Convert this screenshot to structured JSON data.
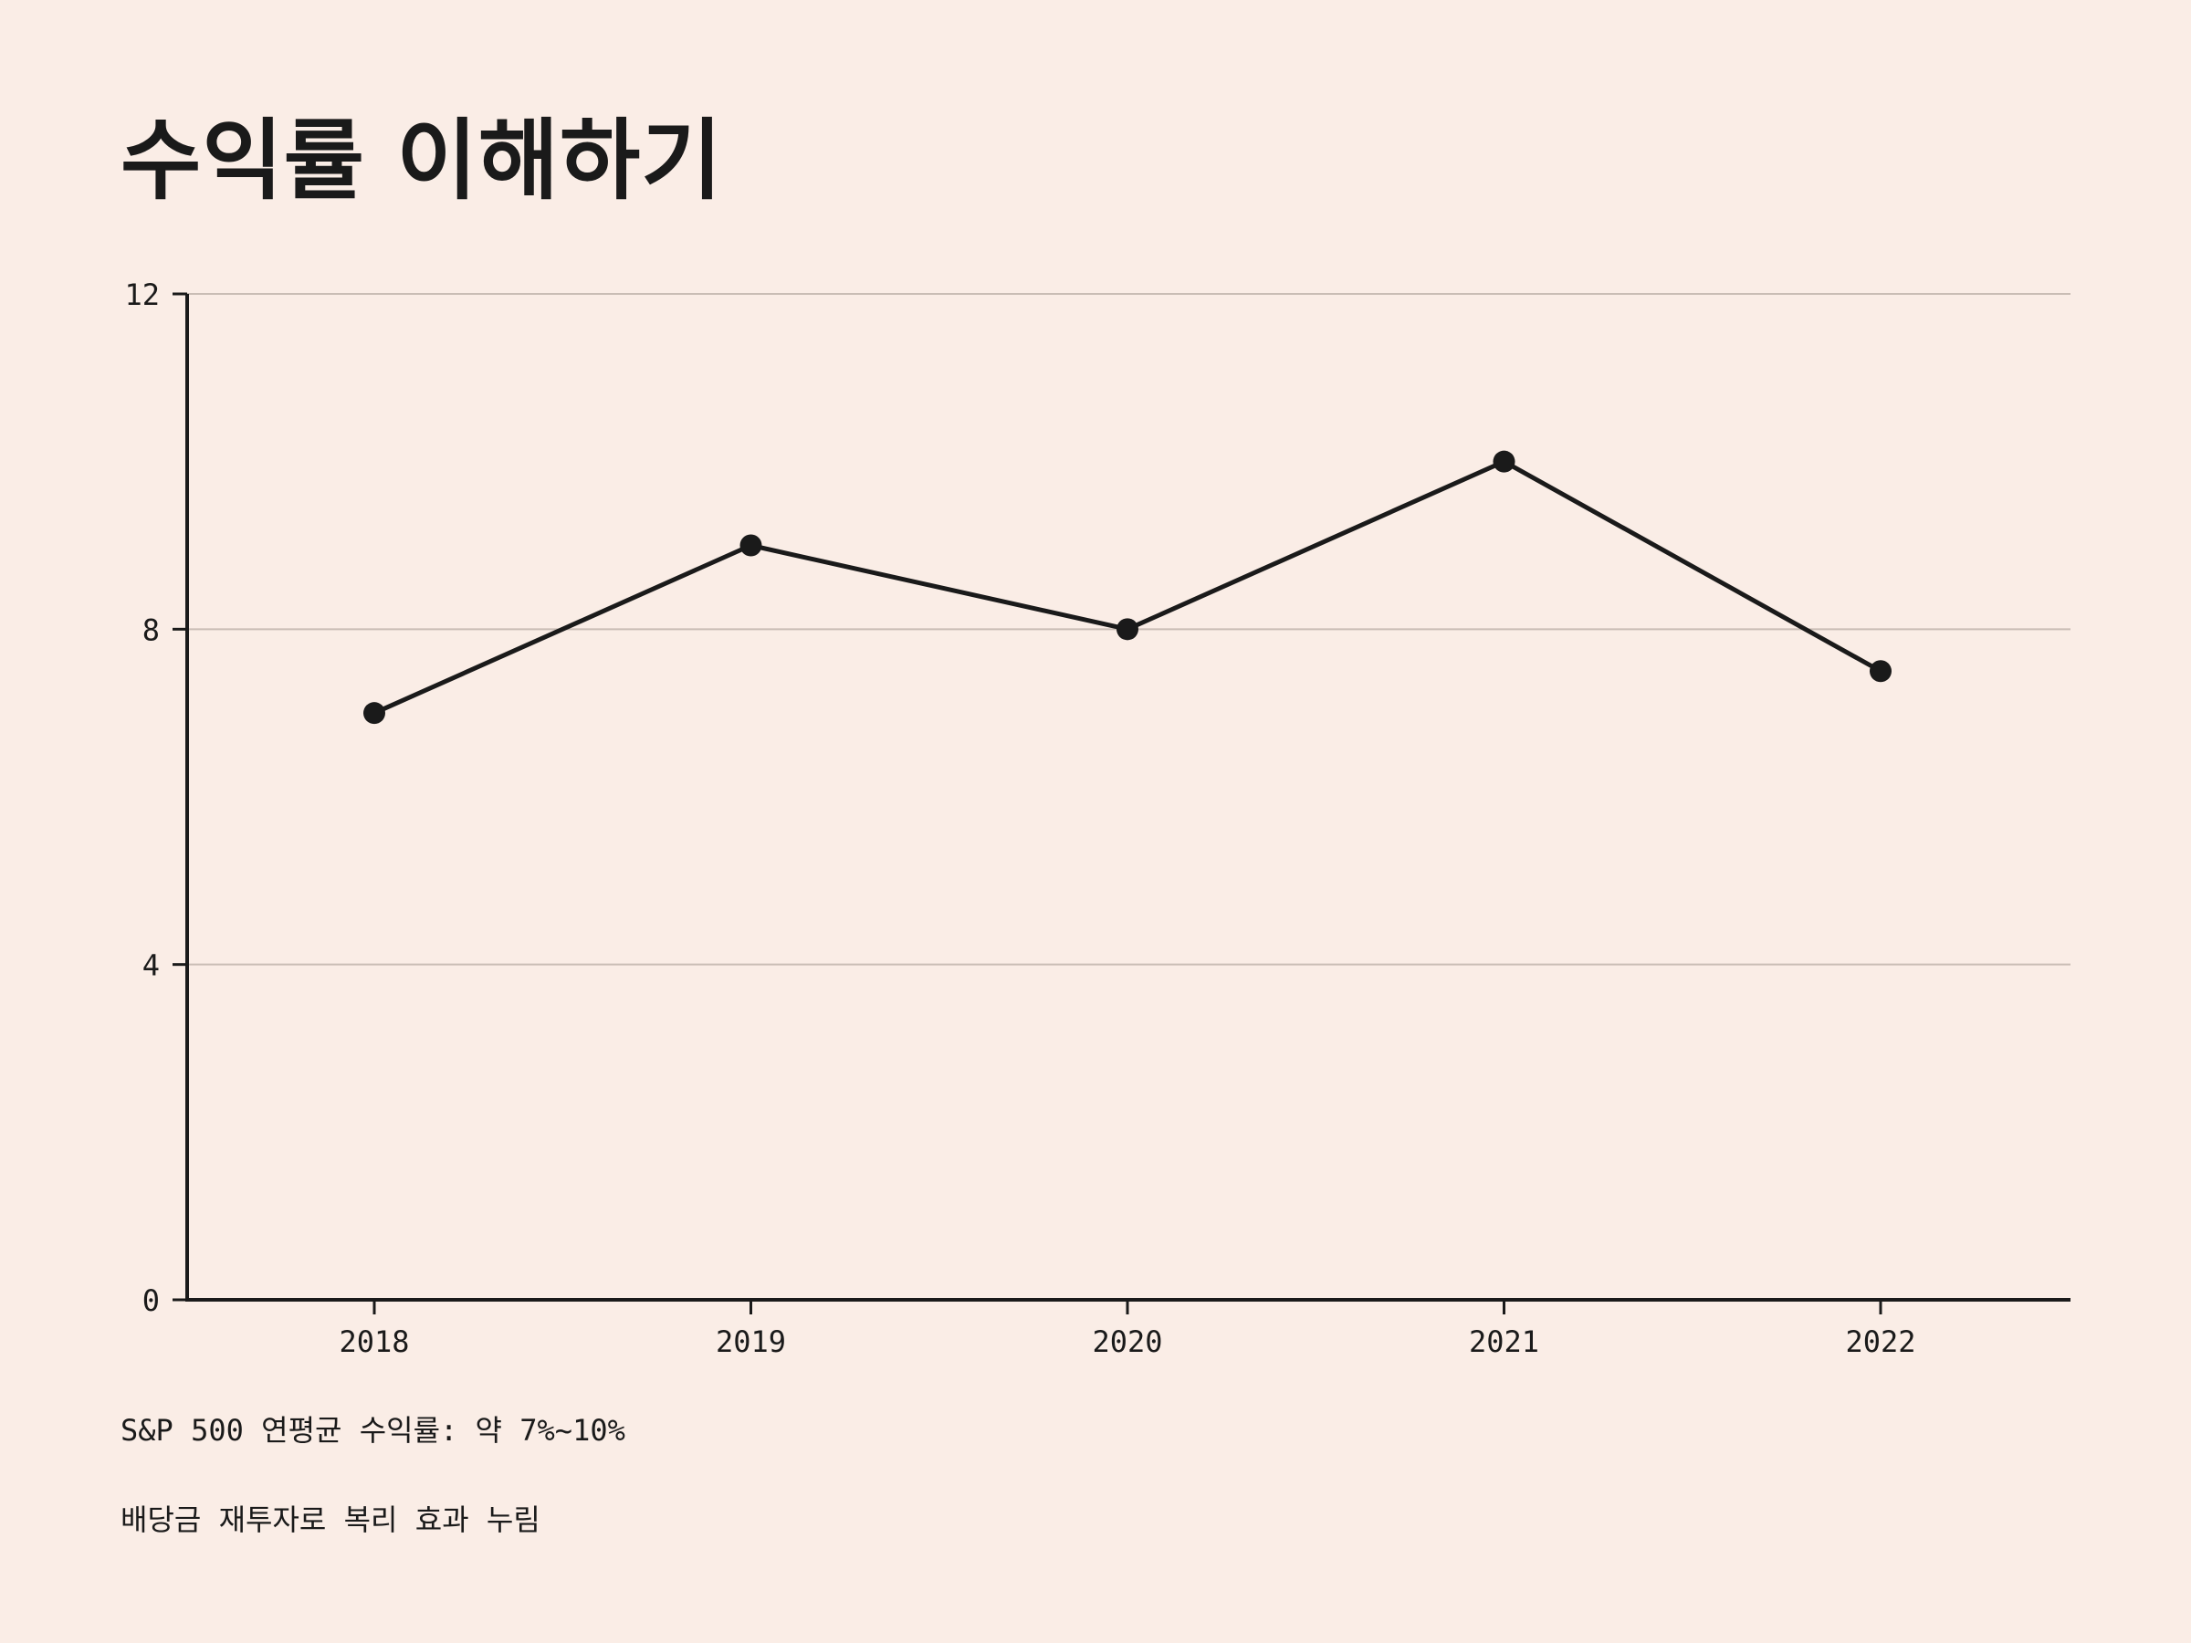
{
  "title": "수익률 이해하기",
  "notes": [
    "S&P 500 연평균 수익률: 약 7%~10%",
    "배당금 재투자로 복리 효과 누림"
  ],
  "colors": {
    "background": "#faede6",
    "line": "#1a1a1a",
    "grid": "#c9bdb5"
  },
  "chart_data": {
    "type": "line",
    "title": "수익률 이해하기",
    "xlabel": "",
    "ylabel": "",
    "categories": [
      "2018",
      "2019",
      "2020",
      "2021",
      "2022"
    ],
    "series": [
      {
        "values": [
          7,
          9,
          8,
          10,
          7.5
        ]
      }
    ],
    "ylim": [
      0,
      12
    ],
    "yticks": [
      0,
      4,
      8,
      12
    ],
    "grid": true,
    "legend": "none"
  }
}
